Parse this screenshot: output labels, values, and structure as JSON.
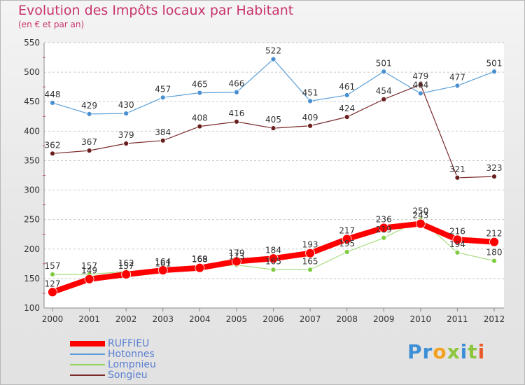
{
  "header": {
    "title": "Evolution des Impôts locaux par Habitant",
    "subtitle": "(en € et par an)"
  },
  "logo": {
    "letters": [
      "P",
      "r",
      "o",
      "x",
      "i",
      "t",
      "i"
    ],
    "colors": [
      "#3d8fd6",
      "#3d8fd6",
      "#f2a11f",
      "#8cc63f",
      "#3d8fd6",
      "#8cc63f",
      "#e85a2a"
    ]
  },
  "chart_data": {
    "type": "line",
    "title": "Evolution des Impôts locaux par Habitant",
    "subtitle": "(en € et par an)",
    "x": [
      2000,
      2001,
      2002,
      2003,
      2004,
      2005,
      2006,
      2007,
      2008,
      2009,
      2010,
      2011,
      2012
    ],
    "ylim": [
      100,
      550
    ],
    "yticks": [
      100,
      150,
      200,
      250,
      300,
      350,
      400,
      450,
      500,
      550
    ],
    "grid": "horizontal dashed",
    "series": [
      {
        "name": "RUFFIEU",
        "color": "#ff0000",
        "values": [
          127,
          149,
          157,
          164,
          168,
          179,
          184,
          193,
          217,
          236,
          243,
          216,
          212
        ],
        "labels": [
          "127",
          "149",
          "157",
          "164",
          "168",
          "179",
          "184",
          "193",
          "217",
          "236",
          "243",
          "216",
          "212"
        ]
      },
      {
        "name": "Hotonnes",
        "color": "#5b9fd8",
        "values": [
          448,
          429,
          430,
          457,
          465,
          466,
          522,
          451,
          461,
          501,
          464,
          477,
          501
        ],
        "labels": [
          "448",
          "429",
          "430",
          "457",
          "465",
          "466",
          "522",
          "451",
          "461",
          "501",
          "464",
          "477",
          "501"
        ]
      },
      {
        "name": "Lompnieu",
        "color": "#90d45a",
        "values": [
          157,
          157,
          162,
          161,
          169,
          173,
          165,
          165,
          195,
          219,
          250,
          194,
          180
        ],
        "labels": [
          "157",
          "157",
          "162",
          "161",
          "169",
          "173",
          "165",
          "165",
          "195",
          "219",
          "250",
          "194",
          "180"
        ]
      },
      {
        "name": "Songieu",
        "color": "#7a2a2a",
        "values": [
          362,
          367,
          379,
          384,
          408,
          416,
          405,
          409,
          424,
          454,
          479,
          321,
          323
        ],
        "labels": [
          "362",
          "367",
          "379",
          "384",
          "408",
          "416",
          "405",
          "409",
          "424",
          "454",
          "479",
          "321",
          "323"
        ]
      }
    ],
    "legend": "bottom-left"
  }
}
